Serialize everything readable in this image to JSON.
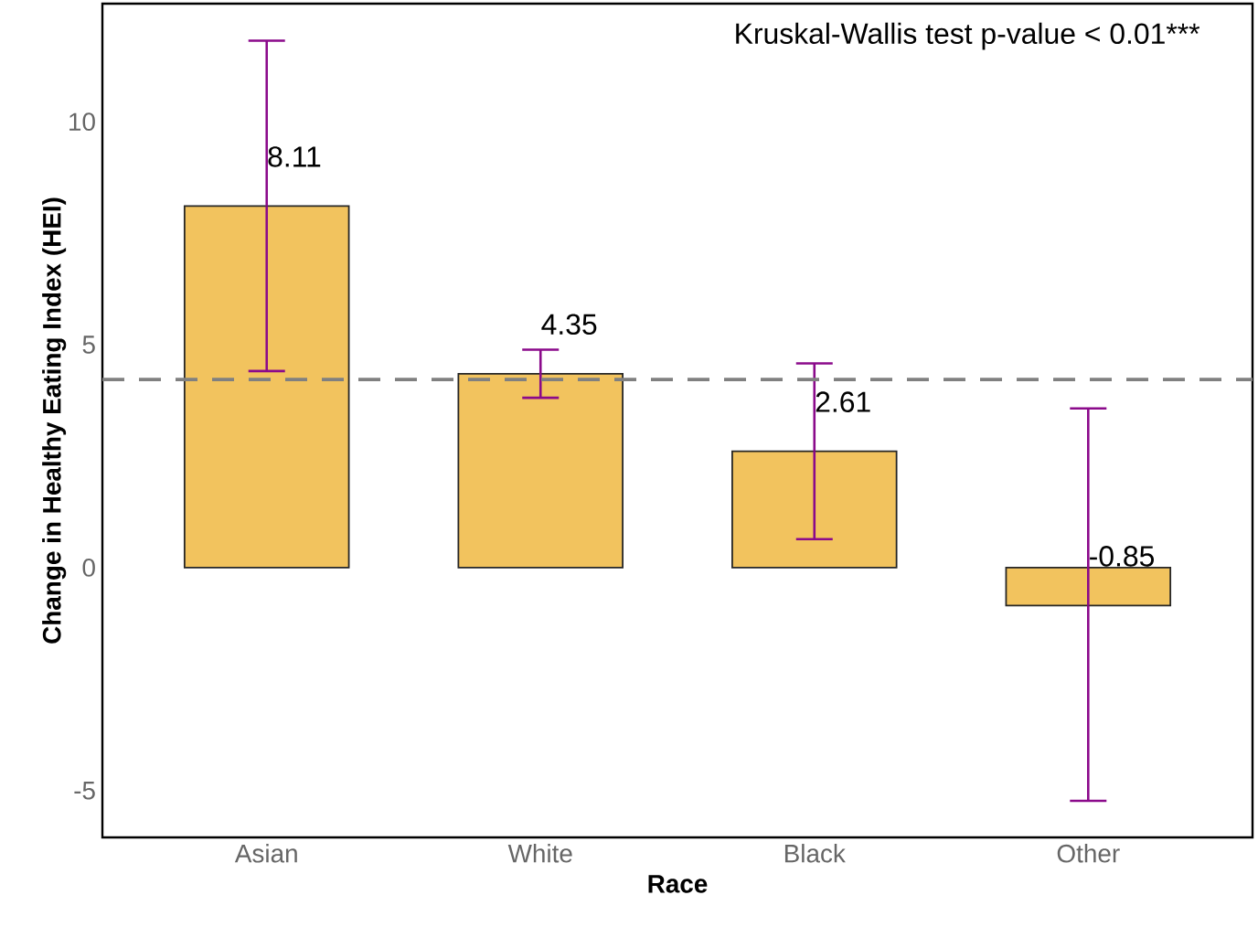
{
  "chart_data": {
    "type": "bar",
    "xlabel": "Race",
    "ylabel": "Change in Healthy Eating Index (HEI)",
    "categories": [
      "Asian",
      "White",
      "Black",
      "Other"
    ],
    "values": [
      8.11,
      4.35,
      2.61,
      -0.85
    ],
    "errors": [
      [
        4.41,
        11.82
      ],
      [
        3.81,
        4.89
      ],
      [
        0.64,
        4.58
      ],
      [
        -5.23,
        3.57
      ]
    ],
    "color": "#f2c35e",
    "data_labels": true,
    "ylim": [
      -6.05,
      12.65
    ],
    "yticks": [
      -5,
      0,
      5,
      10
    ],
    "ref_lines": [
      {
        "axis": "y",
        "value": 4.22,
        "color": "#808080",
        "line_style": "dashed"
      }
    ],
    "annotations": [
      "Kruskal-Wallis test p-value < 0.01***"
    ],
    "grid": false
  }
}
